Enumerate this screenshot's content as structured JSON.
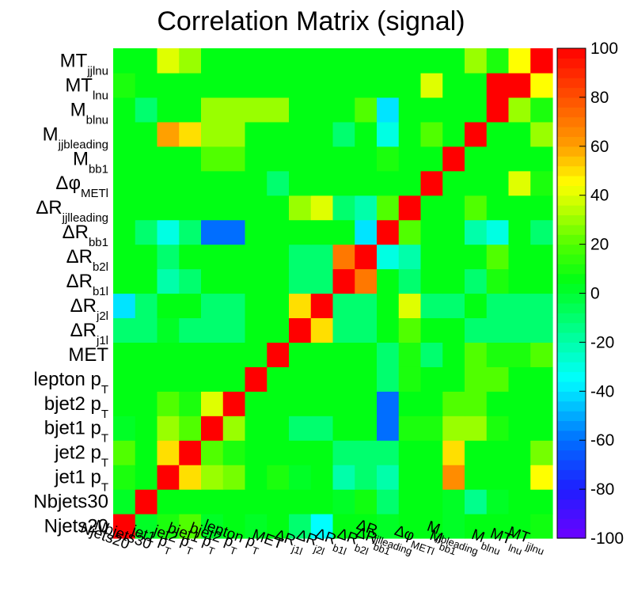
{
  "chart_data": {
    "type": "heatmap",
    "title": "Correlation Matrix (signal)",
    "labels": [
      "Njets20",
      "Nbjets30",
      "jet1 p_T",
      "jet2 p_T",
      "bjet1 p_T",
      "bjet2 p_T",
      "lepton p_T",
      "MET",
      "ΔR_j_1l",
      "ΔR_j2l",
      "ΔR_b_1l",
      "ΔR_b2l",
      "ΔR_bb_1",
      "ΔR_jjl_leading",
      "Δφ_METl",
      "M_bb_1",
      "M_jjb_leading",
      "M_blnu",
      "MT_lnu",
      "MT_jjlnu"
    ],
    "labels_display": [
      "Njets20",
      "Nbjets30",
      "jet1 pT",
      "jet2 pT",
      "bjet1 pT",
      "bjet2 pT",
      "lepton pT",
      "MET",
      "ΔRj1l",
      "ΔRj2l",
      "ΔRb1l",
      "ΔRb2l",
      "ΔRbb1",
      "ΔRjjl_leading",
      "ΔφMETl",
      "Mbb1",
      "Mjjb_leading",
      "Mblnu",
      "MTlnu",
      "MTjjlnu"
    ],
    "matrix": [
      [
        100,
        2,
        10,
        20,
        2,
        5,
        2,
        5,
        -10,
        -35,
        5,
        5,
        2,
        5,
        5,
        2,
        5,
        5,
        5,
        8
      ],
      [
        2,
        100,
        5,
        5,
        5,
        5,
        5,
        5,
        5,
        5,
        2,
        8,
        -10,
        5,
        5,
        2,
        -15,
        2,
        5,
        5
      ],
      [
        10,
        5,
        100,
        50,
        30,
        25,
        5,
        10,
        2,
        5,
        -20,
        -10,
        -20,
        5,
        5,
        65,
        5,
        5,
        5,
        45
      ],
      [
        20,
        5,
        50,
        100,
        20,
        10,
        5,
        5,
        5,
        5,
        -10,
        -10,
        -10,
        5,
        5,
        50,
        5,
        5,
        5,
        25
      ],
      [
        2,
        5,
        30,
        20,
        100,
        30,
        5,
        5,
        -10,
        -10,
        5,
        5,
        -60,
        10,
        10,
        30,
        30,
        10,
        5,
        5
      ],
      [
        5,
        5,
        20,
        10,
        40,
        100,
        5,
        5,
        5,
        5,
        5,
        5,
        -60,
        5,
        5,
        20,
        20,
        5,
        5,
        5
      ],
      [
        5,
        5,
        5,
        5,
        5,
        5,
        100,
        5,
        5,
        5,
        5,
        5,
        -10,
        10,
        5,
        5,
        20,
        20,
        5,
        5
      ],
      [
        5,
        5,
        5,
        5,
        5,
        5,
        5,
        100,
        5,
        5,
        5,
        5,
        -10,
        10,
        -10,
        5,
        20,
        10,
        10,
        20
      ],
      [
        -10,
        -10,
        2,
        -10,
        -10,
        -10,
        5,
        5,
        100,
        50,
        -10,
        -10,
        5,
        20,
        5,
        5,
        -10,
        -10,
        -10,
        -10
      ],
      [
        -40,
        -10,
        5,
        5,
        -10,
        -10,
        5,
        5,
        50,
        100,
        -10,
        -10,
        5,
        40,
        -10,
        -10,
        5,
        -10,
        -10,
        -10
      ],
      [
        5,
        5,
        -20,
        -10,
        5,
        5,
        5,
        5,
        -10,
        -10,
        100,
        70,
        5,
        -10,
        5,
        5,
        -10,
        10,
        5,
        5
      ],
      [
        5,
        5,
        -10,
        5,
        5,
        5,
        5,
        5,
        -10,
        -10,
        70,
        100,
        -30,
        -20,
        5,
        5,
        5,
        20,
        5,
        5
      ],
      [
        5,
        -10,
        -30,
        -10,
        -60,
        -60,
        5,
        5,
        5,
        5,
        5,
        -40,
        100,
        20,
        5,
        5,
        -20,
        -30,
        5,
        -10
      ],
      [
        5,
        5,
        5,
        5,
        5,
        5,
        5,
        5,
        30,
        40,
        -10,
        -20,
        20,
        100,
        5,
        5,
        20,
        5,
        5,
        5
      ],
      [
        5,
        5,
        5,
        5,
        5,
        5,
        5,
        -10,
        5,
        5,
        5,
        5,
        5,
        5,
        100,
        5,
        5,
        5,
        40,
        10
      ],
      [
        5,
        5,
        5,
        5,
        20,
        20,
        5,
        5,
        5,
        5,
        5,
        5,
        10,
        5,
        5,
        100,
        5,
        5,
        5,
        5
      ],
      [
        5,
        5,
        60,
        50,
        30,
        30,
        5,
        5,
        5,
        5,
        -10,
        5,
        -30,
        5,
        20,
        5,
        100,
        5,
        5,
        30
      ],
      [
        5,
        -10,
        5,
        5,
        30,
        30,
        30,
        30,
        5,
        5,
        5,
        20,
        -40,
        5,
        5,
        5,
        5,
        100,
        30,
        10
      ],
      [
        10,
        5,
        5,
        5,
        5,
        5,
        5,
        5,
        5,
        5,
        5,
        5,
        5,
        5,
        40,
        5,
        5,
        100,
        100,
        45
      ],
      [
        5,
        5,
        40,
        30,
        5,
        5,
        5,
        5,
        5,
        5,
        5,
        5,
        5,
        5,
        5,
        5,
        30,
        10,
        45,
        100
      ]
    ],
    "zlim": [
      -100,
      100
    ],
    "z_ticks": [
      -100,
      -80,
      -60,
      -40,
      -20,
      0,
      20,
      40,
      60,
      80,
      100
    ],
    "colorbar": "right",
    "grid": false
  }
}
